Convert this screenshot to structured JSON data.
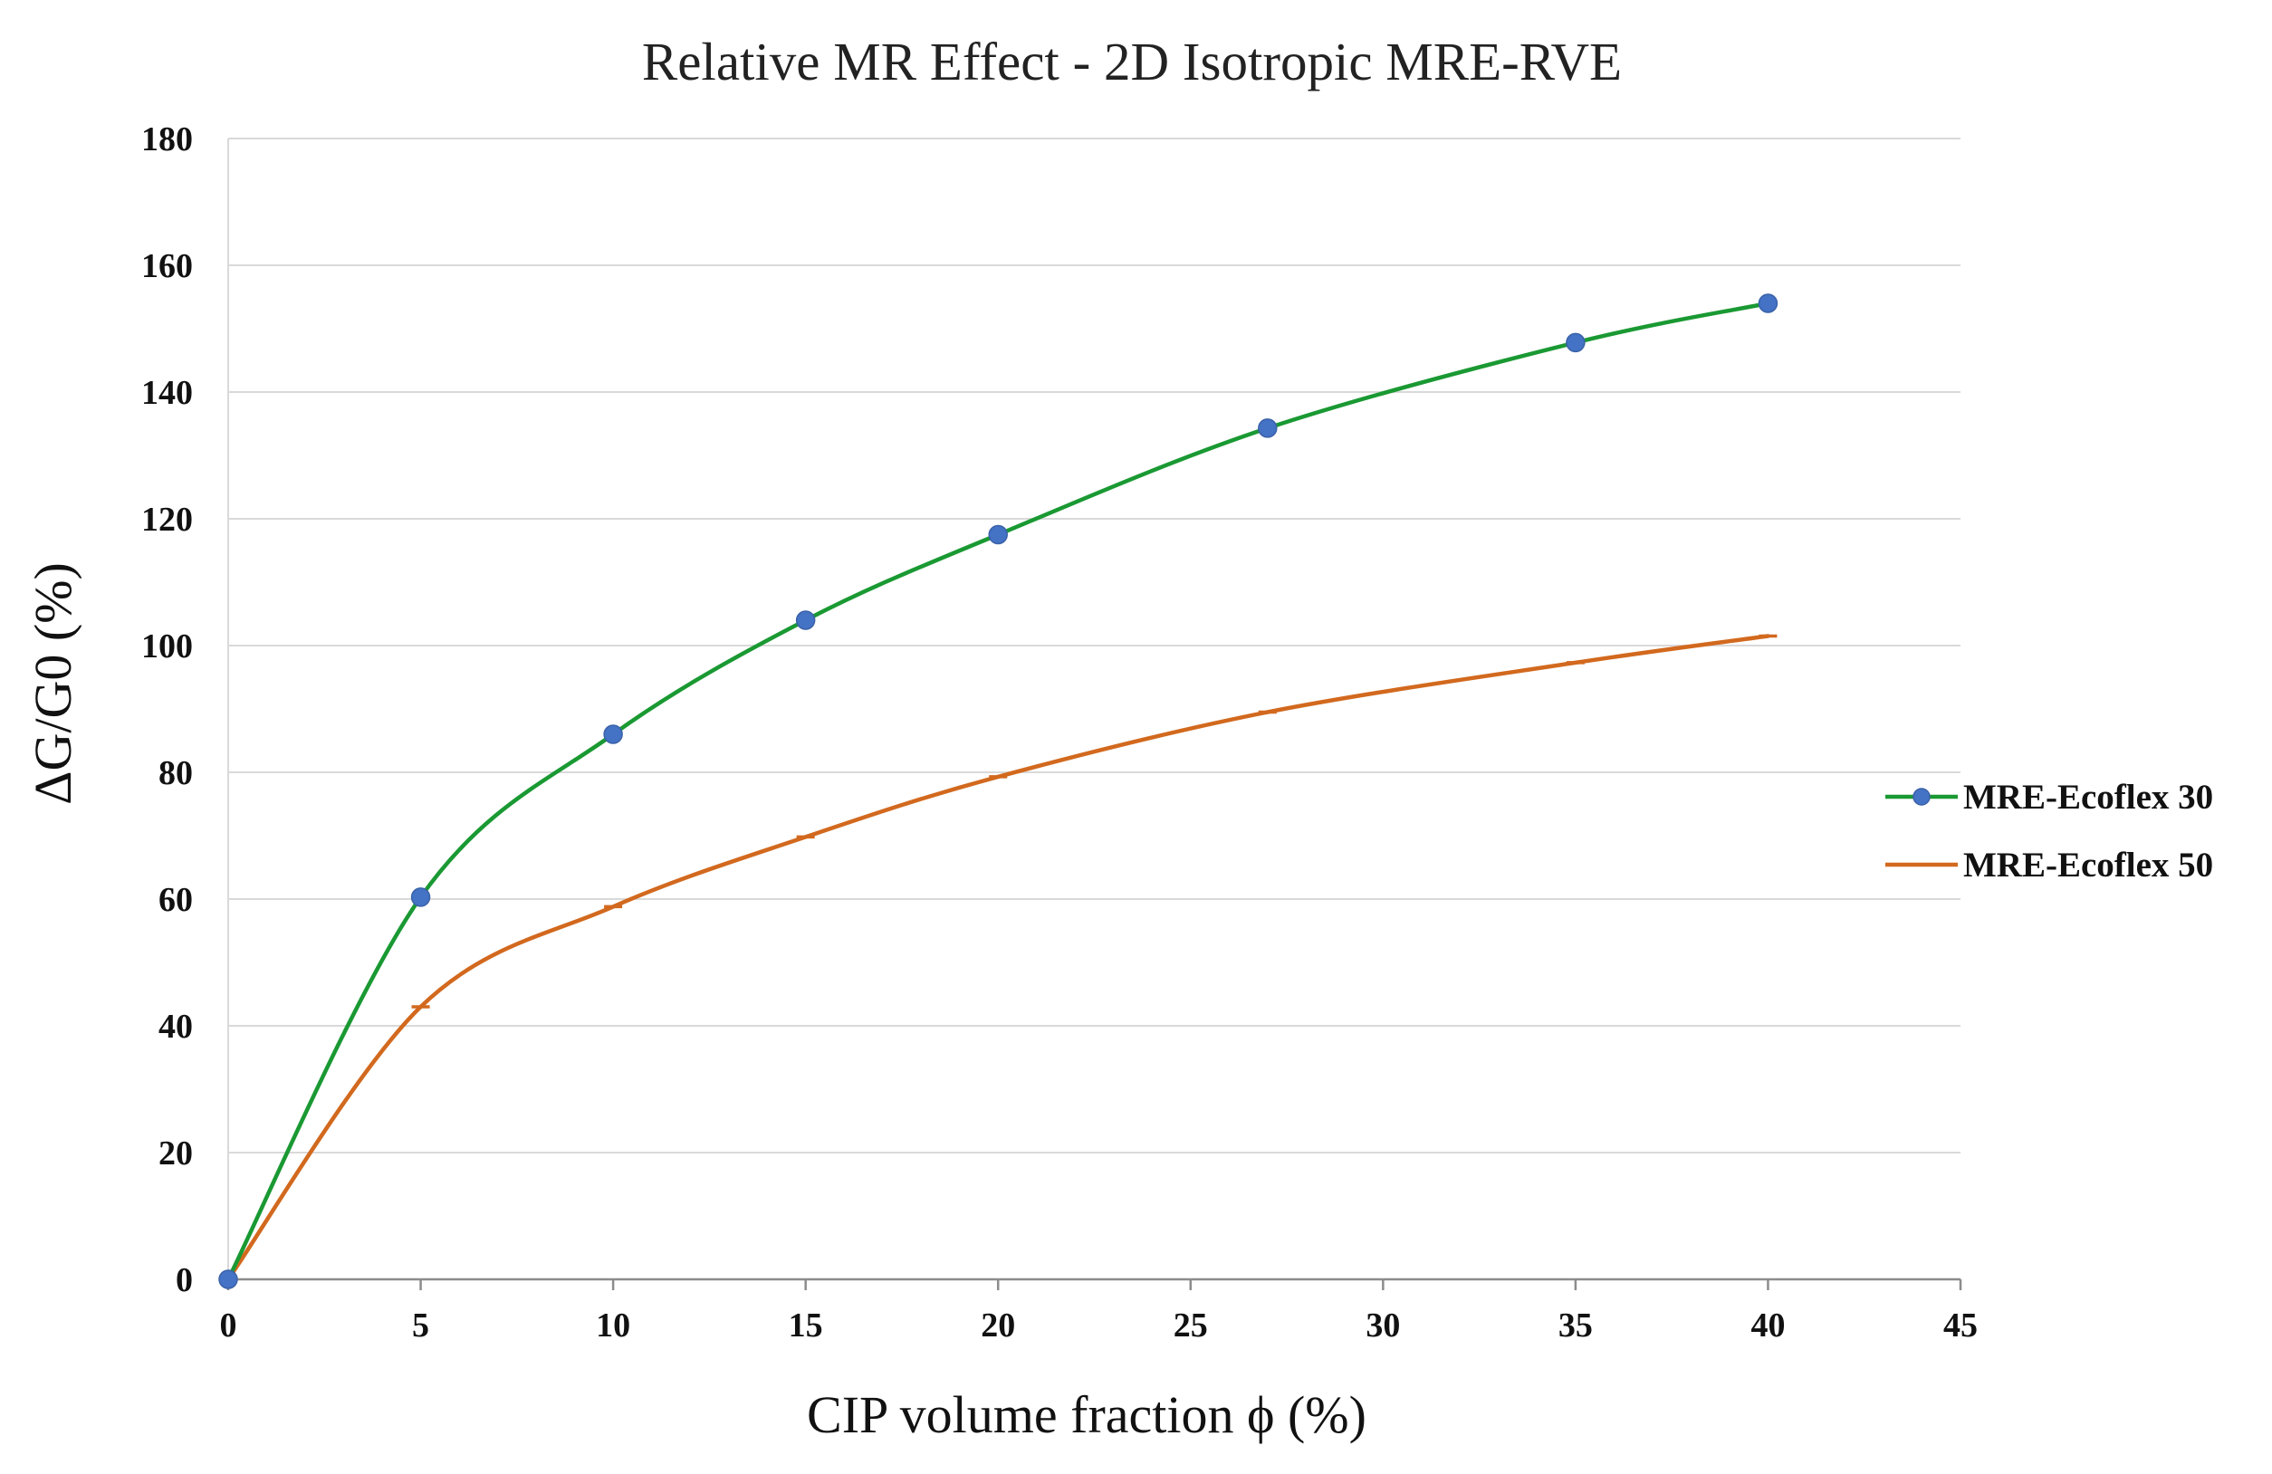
{
  "chart_data": {
    "type": "line",
    "title": "Relative MR Effect - 2D Isotropic MRE-RVE",
    "xlabel": "CIP volume fraction ϕ (%)",
    "ylabel": "ΔG/G0 (%)",
    "xlim": [
      0,
      45
    ],
    "ylim": [
      0,
      180
    ],
    "x_ticks": [
      0,
      5,
      10,
      15,
      20,
      25,
      30,
      35,
      40,
      45
    ],
    "y_ticks": [
      0,
      20,
      40,
      60,
      80,
      100,
      120,
      140,
      160,
      180
    ],
    "grid": true,
    "legend_position": "right",
    "series": [
      {
        "name": "MRE-Ecoflex 30",
        "color": "#1a9933",
        "marker_color": "#4472c4",
        "marker": "circle",
        "points": [
          {
            "x": 0,
            "y": 0
          },
          {
            "x": 5,
            "y": 60.3
          },
          {
            "x": 10,
            "y": 86
          },
          {
            "x": 15,
            "y": 104
          },
          {
            "x": 20,
            "y": 117.5
          },
          {
            "x": 27,
            "y": 134.3
          },
          {
            "x": 35,
            "y": 147.8
          },
          {
            "x": 40,
            "y": 154
          }
        ]
      },
      {
        "name": "MRE-Ecoflex 50",
        "color": "#d2691e",
        "marker": "dash",
        "points": [
          {
            "x": 0,
            "y": 0
          },
          {
            "x": 5,
            "y": 43
          },
          {
            "x": 10,
            "y": 58.8
          },
          {
            "x": 15,
            "y": 69.8
          },
          {
            "x": 20,
            "y": 79.3
          },
          {
            "x": 27,
            "y": 89.5
          },
          {
            "x": 35,
            "y": 97.3
          },
          {
            "x": 40,
            "y": 101.5
          }
        ]
      }
    ]
  }
}
